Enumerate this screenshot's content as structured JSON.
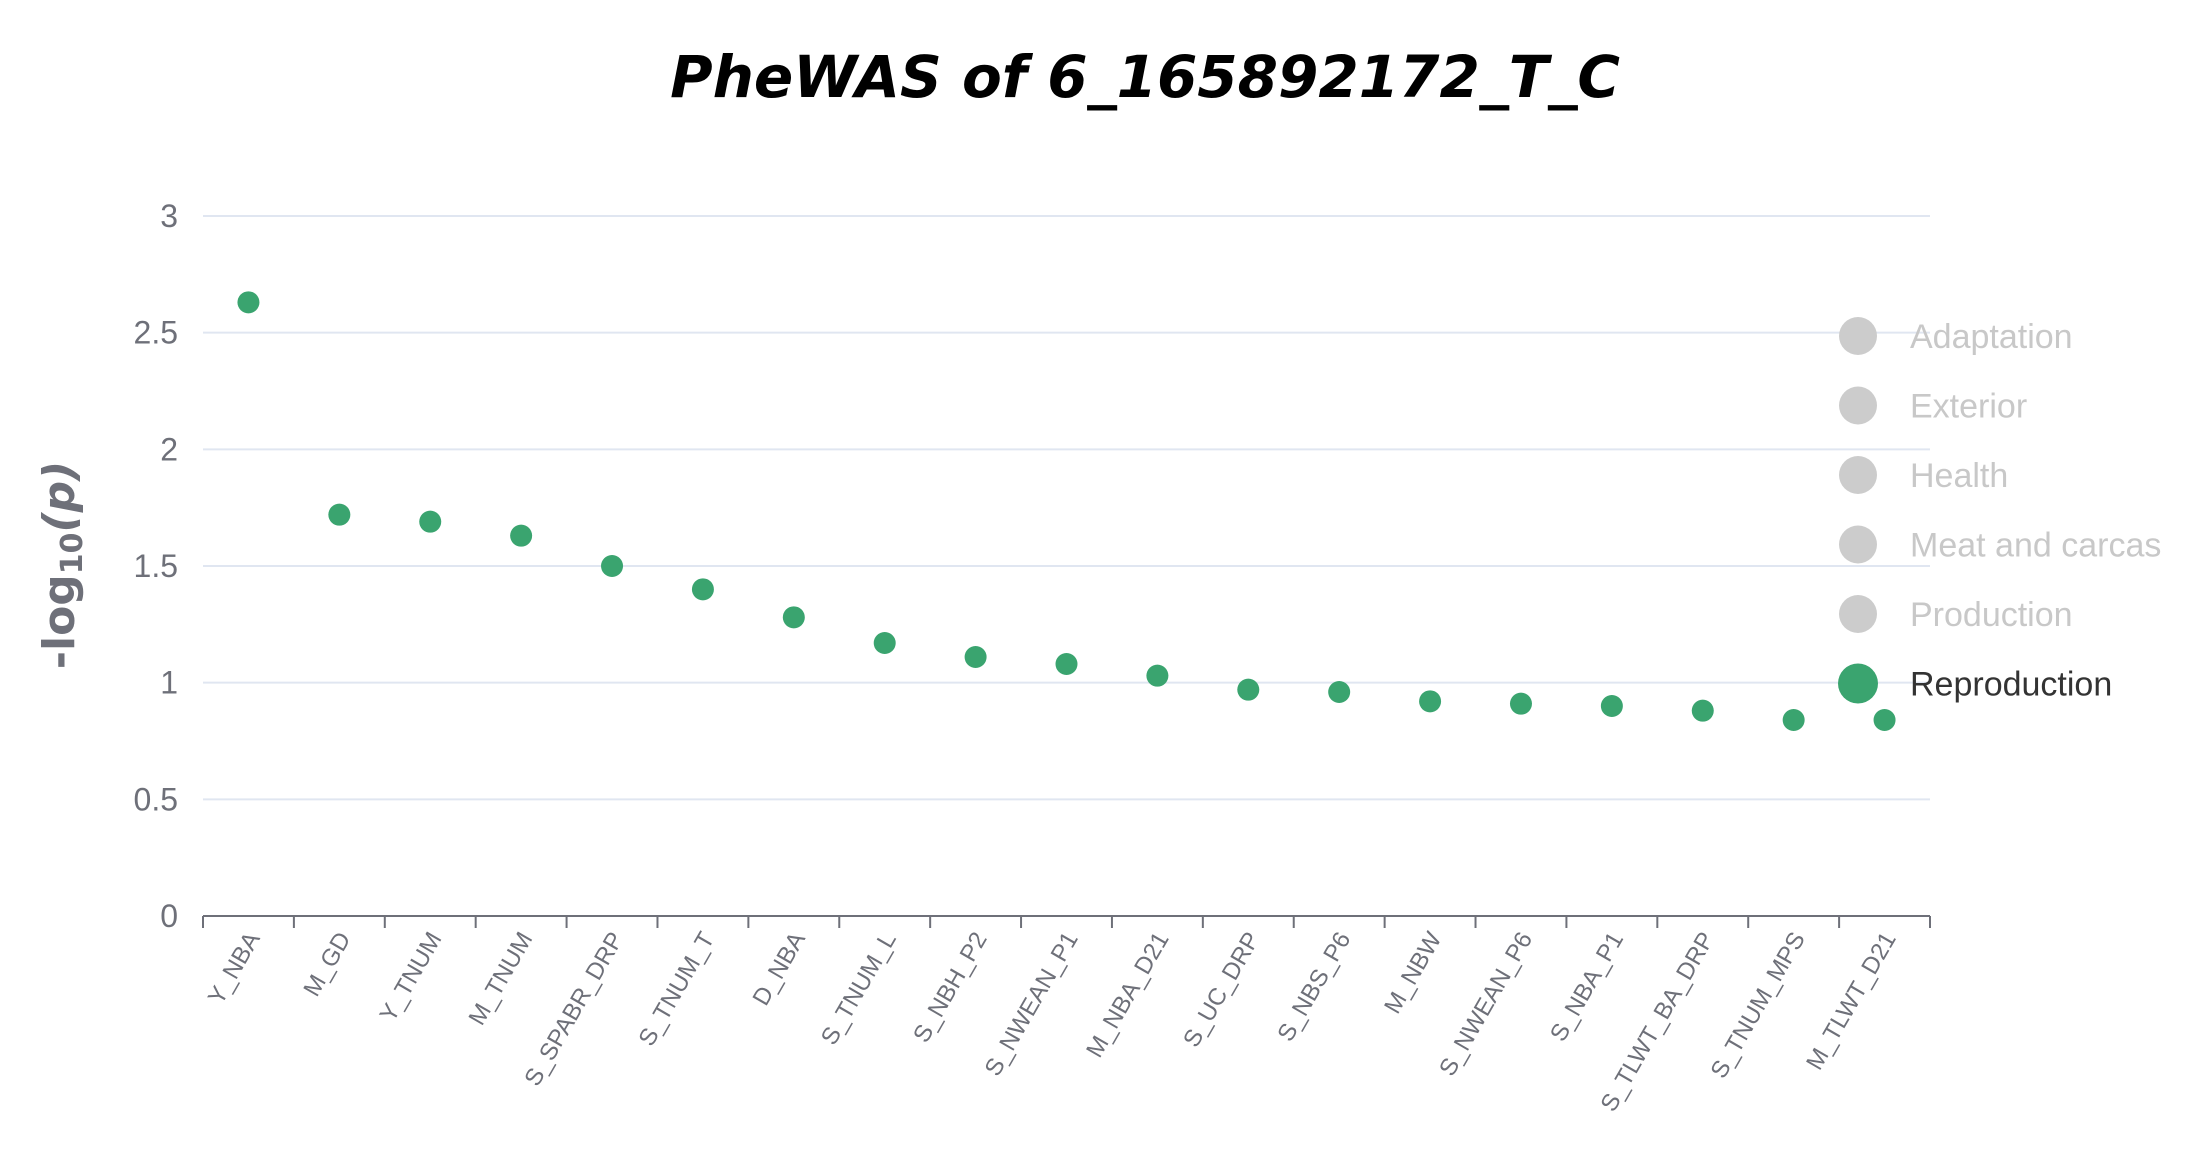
{
  "chart_data": {
    "type": "scatter",
    "title": "PheWAS of 6_165892172_T_C",
    "ylabel": "-log10(p)",
    "ylabel_parts": {
      "prefix": "-log",
      "subscript": "10",
      "argument": "(p)"
    },
    "xlabel": "",
    "ylim": [
      0,
      3
    ],
    "yticks": [
      "0",
      "0.5",
      "1",
      "1.5",
      "2",
      "2.5",
      "3"
    ],
    "categories": [
      "Y_NBA",
      "M_GD",
      "Y_TNUM",
      "M_TNUM",
      "S_SPABR_DRP",
      "S_TNUM_T",
      "D_NBA",
      "S_TNUM_L",
      "S_NBH_P2",
      "S_NWEAN_P1",
      "M_NBA_D21",
      "S_UC_DRP",
      "S_NBS_P6",
      "M_NBW",
      "S_NWEAN_P6",
      "S_NBA_P1",
      "S_TLWT_BA_DRP",
      "S_TNUM_MPS",
      "M_TLWT_D21"
    ],
    "series": [
      {
        "name": "Reproduction",
        "color": "#3aa46f",
        "values": [
          2.63,
          1.72,
          1.69,
          1.63,
          1.5,
          1.4,
          1.28,
          1.17,
          1.11,
          1.08,
          1.03,
          0.97,
          0.96,
          0.92,
          0.91,
          0.9,
          0.88,
          0.84,
          0.84
        ]
      }
    ],
    "legend": {
      "placement": "right",
      "items": [
        {
          "label": "Adaptation",
          "active": false
        },
        {
          "label": "Exterior",
          "active": false
        },
        {
          "label": "Health",
          "active": false
        },
        {
          "label": "Meat and carcas",
          "active": false
        },
        {
          "label": "Production",
          "active": false
        },
        {
          "label": "Reproduction",
          "active": true
        }
      ],
      "inactive_color": "#cccccc",
      "inactive_text_color": "#c8c8c8",
      "active_text_color": "#333333"
    },
    "grid": true,
    "colors": {
      "axis": "#6e7079",
      "grid": "#e0e6f1"
    }
  }
}
